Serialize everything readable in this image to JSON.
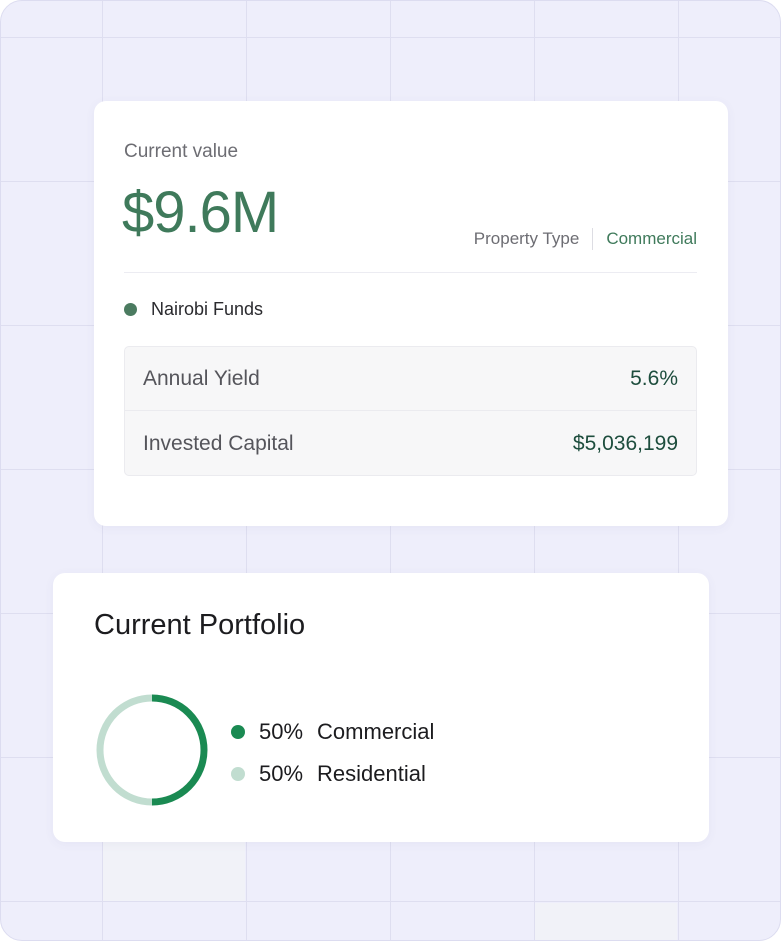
{
  "value_card": {
    "label": "Current value",
    "amount": "$9.6M",
    "property_type_label": "Property Type",
    "property_type_value": "Commercial",
    "fund_name": "Nairobi Funds",
    "stats": [
      {
        "label": "Annual Yield",
        "value": "5.6%"
      },
      {
        "label": "Invested Capital",
        "value": "$5,036,199"
      }
    ]
  },
  "portfolio_card": {
    "title": "Current Portfolio",
    "legend": [
      {
        "percent": "50%",
        "label": "Commercial",
        "color": "#1a8a52"
      },
      {
        "percent": "50%",
        "label": "Residential",
        "color": "#c1ddd0"
      }
    ]
  },
  "chart_data": {
    "type": "pie",
    "categories": [
      "Commercial",
      "Residential"
    ],
    "values": [
      50,
      50
    ],
    "colors": [
      "#1a8a52",
      "#c1ddd0"
    ],
    "title": ""
  },
  "colors": {
    "accent": "#3f7a5b",
    "background": "#eeeefb",
    "stat_value": "#1d4d3d"
  }
}
